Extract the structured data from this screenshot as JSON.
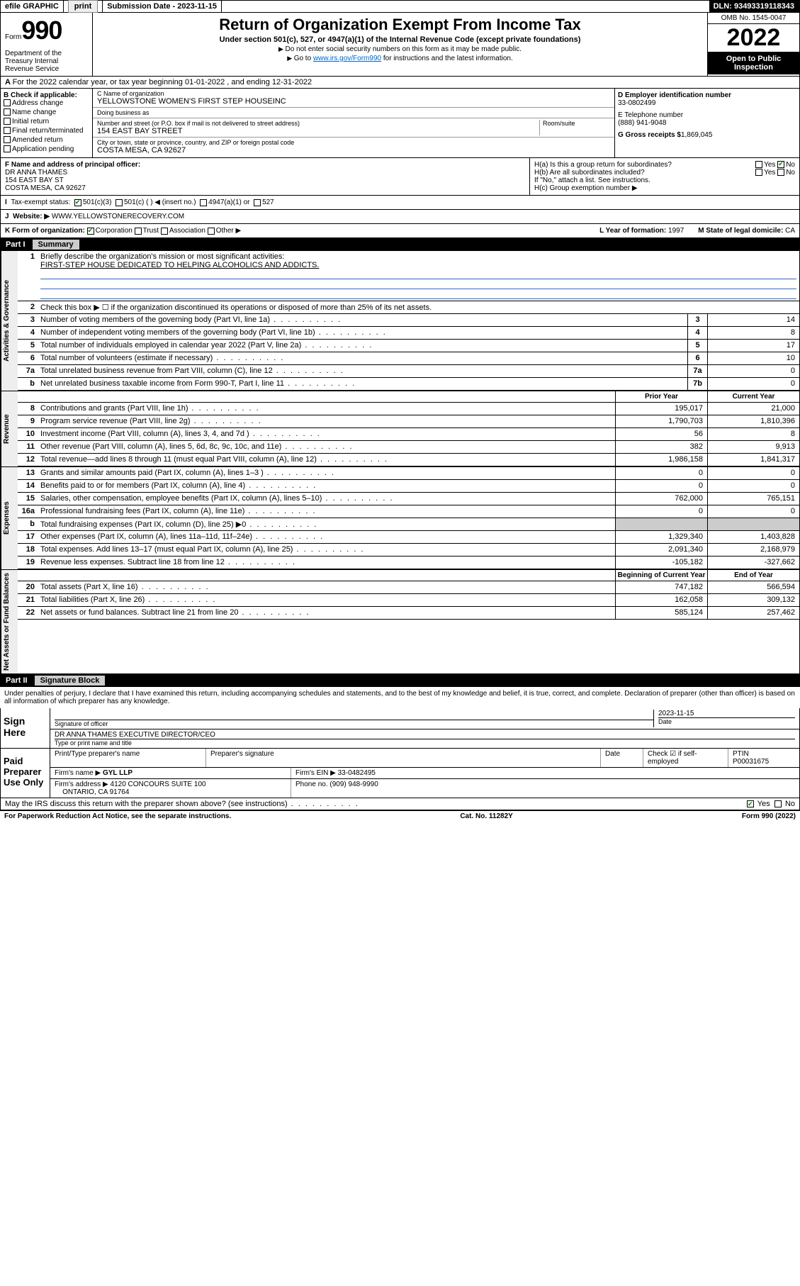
{
  "topbar": {
    "efile": "efile GRAPHIC",
    "print": "print",
    "submission_label": "Submission Date",
    "submission_date": "2023-11-15",
    "dln_label": "DLN:",
    "dln": "93493319118343"
  },
  "header": {
    "form_word": "Form",
    "form_no": "990",
    "title": "Return of Organization Exempt From Income Tax",
    "subtitle": "Under section 501(c), 527, or 4947(a)(1) of the Internal Revenue Code (except private foundations)",
    "note1": "Do not enter social security numbers on this form as it may be made public.",
    "note2_pre": "Go to ",
    "note2_link": "www.irs.gov/Form990",
    "note2_post": " for instructions and the latest information.",
    "omb": "OMB No. 1545-0047",
    "year": "2022",
    "inspection": "Open to Public Inspection",
    "dept": "Department of the Treasury Internal Revenue Service"
  },
  "rowA": "For the 2022 calendar year, or tax year beginning 01-01-2022   , and ending 12-31-2022",
  "B": {
    "hdr": "B Check if applicable:",
    "items": [
      "Address change",
      "Name change",
      "Initial return",
      "Final return/terminated",
      "Amended return",
      "Application pending"
    ]
  },
  "C": {
    "name_lbl": "C Name of organization",
    "name": "YELLOWSTONE WOMEN'S FIRST STEP HOUSEINC",
    "dba_lbl": "Doing business as",
    "dba": "",
    "street_lbl": "Number and street (or P.O. box if mail is not delivered to street address)",
    "room_lbl": "Room/suite",
    "street": "154 EAST BAY STREET",
    "city_lbl": "City or town, state or province, country, and ZIP or foreign postal code",
    "city": "COSTA MESA, CA  92627"
  },
  "D": {
    "ein_lbl": "D Employer identification number",
    "ein": "33-0802499",
    "phone_lbl": "E Telephone number",
    "phone": "(888) 941-9048",
    "gross_lbl": "G Gross receipts $",
    "gross": "1,869,045"
  },
  "F": {
    "lbl": "F Name and address of principal officer:",
    "name": "DR ANNA THAMES",
    "addr1": "154 EAST BAY ST",
    "addr2": "COSTA MESA, CA  92627"
  },
  "H": {
    "a": "H(a)  Is this a group return for subordinates?",
    "a_yes": "Yes",
    "a_no": "No",
    "b": "H(b)  Are all subordinates included?",
    "b_yes": "Yes",
    "b_no": "No",
    "b_note": "If \"No,\" attach a list. See instructions.",
    "c": "H(c)  Group exemption number ▶"
  },
  "I": {
    "lbl": "Tax-exempt status:",
    "o1": "501(c)(3)",
    "o2": "501(c) (  ) ◀ (insert no.)",
    "o3": "4947(a)(1) or",
    "o4": "527"
  },
  "J": {
    "lbl": "Website: ▶",
    "val": "WWW.YELLOWSTONERECOVERY.COM"
  },
  "K": {
    "lbl": "K Form of organization:",
    "o1": "Corporation",
    "o2": "Trust",
    "o3": "Association",
    "o4": "Other ▶",
    "L_lbl": "L Year of formation:",
    "L_val": "1997",
    "M_lbl": "M State of legal domicile:",
    "M_val": "CA"
  },
  "part1": {
    "num": "Part I",
    "title": "Summary"
  },
  "mission": {
    "q1": "Briefly describe the organization's mission or most significant activities:",
    "text": "FIRST-STEP HOUSE DEDICATED TO HELPING ALCOHOLICS AND ADDICTS."
  },
  "summary": {
    "sections": [
      {
        "label": "Activities & Governance",
        "rows": [
          {
            "n": "1",
            "t_key": "mission.q1",
            "type": "mission"
          },
          {
            "n": "2",
            "t": "Check this box ▶ ☐  if the organization discontinued its operations or disposed of more than 25% of its net assets.",
            "type": "plain"
          },
          {
            "n": "3",
            "t": "Number of voting members of the governing body (Part VI, line 1a)",
            "box": "3",
            "v2": "14"
          },
          {
            "n": "4",
            "t": "Number of independent voting members of the governing body (Part VI, line 1b)",
            "box": "4",
            "v2": "8"
          },
          {
            "n": "5",
            "t": "Total number of individuals employed in calendar year 2022 (Part V, line 2a)",
            "box": "5",
            "v2": "17"
          },
          {
            "n": "6",
            "t": "Total number of volunteers (estimate if necessary)",
            "box": "6",
            "v2": "10"
          },
          {
            "n": "7a",
            "t": "Total unrelated business revenue from Part VIII, column (C), line 12",
            "box": "7a",
            "v2": "0"
          },
          {
            "n": "b",
            "t": "Net unrelated business taxable income from Form 990-T, Part I, line 11",
            "box": "7b",
            "v2": "0"
          }
        ]
      },
      {
        "label": "Revenue",
        "header": true,
        "h1": "Prior Year",
        "h2": "Current Year",
        "rows": [
          {
            "n": "8",
            "t": "Contributions and grants (Part VIII, line 1h)",
            "v1": "195,017",
            "v2": "21,000"
          },
          {
            "n": "9",
            "t": "Program service revenue (Part VIII, line 2g)",
            "v1": "1,790,703",
            "v2": "1,810,396"
          },
          {
            "n": "10",
            "t": "Investment income (Part VIII, column (A), lines 3, 4, and 7d )",
            "v1": "56",
            "v2": "8"
          },
          {
            "n": "11",
            "t": "Other revenue (Part VIII, column (A), lines 5, 6d, 8c, 9c, 10c, and 11e)",
            "v1": "382",
            "v2": "9,913"
          },
          {
            "n": "12",
            "t": "Total revenue—add lines 8 through 11 (must equal Part VIII, column (A), line 12)",
            "v1": "1,986,158",
            "v2": "1,841,317"
          }
        ]
      },
      {
        "label": "Expenses",
        "rows": [
          {
            "n": "13",
            "t": "Grants and similar amounts paid (Part IX, column (A), lines 1–3 )",
            "v1": "0",
            "v2": "0"
          },
          {
            "n": "14",
            "t": "Benefits paid to or for members (Part IX, column (A), line 4)",
            "v1": "0",
            "v2": "0"
          },
          {
            "n": "15",
            "t": "Salaries, other compensation, employee benefits (Part IX, column (A), lines 5–10)",
            "v1": "762,000",
            "v2": "765,151"
          },
          {
            "n": "16a",
            "t": "Professional fundraising fees (Part IX, column (A), line 11e)",
            "v1": "0",
            "v2": "0"
          },
          {
            "n": "b",
            "t": "Total fundraising expenses (Part IX, column (D), line 25) ▶0",
            "v1": "",
            "v2": "",
            "shade": true
          },
          {
            "n": "17",
            "t": "Other expenses (Part IX, column (A), lines 11a–11d, 11f–24e)",
            "v1": "1,329,340",
            "v2": "1,403,828"
          },
          {
            "n": "18",
            "t": "Total expenses. Add lines 13–17 (must equal Part IX, column (A), line 25)",
            "v1": "2,091,340",
            "v2": "2,168,979"
          },
          {
            "n": "19",
            "t": "Revenue less expenses. Subtract line 18 from line 12",
            "v1": "-105,182",
            "v2": "-327,662"
          }
        ]
      },
      {
        "label": "Net Assets or Fund Balances",
        "header": true,
        "h1": "Beginning of Current Year",
        "h2": "End of Year",
        "rows": [
          {
            "n": "20",
            "t": "Total assets (Part X, line 16)",
            "v1": "747,182",
            "v2": "566,594"
          },
          {
            "n": "21",
            "t": "Total liabilities (Part X, line 26)",
            "v1": "162,058",
            "v2": "309,132"
          },
          {
            "n": "22",
            "t": "Net assets or fund balances. Subtract line 21 from line 20",
            "v1": "585,124",
            "v2": "257,462"
          }
        ]
      }
    ]
  },
  "part2": {
    "num": "Part II",
    "title": "Signature Block"
  },
  "penalties": "Under penalties of perjury, I declare that I have examined this return, including accompanying schedules and statements, and to the best of my knowledge and belief, it is true, correct, and complete. Declaration of preparer (other than officer) is based on all information of which preparer has any knowledge.",
  "sign": {
    "here": "Sign Here",
    "sig_lbl": "Signature of officer",
    "date_lbl": "Date",
    "date": "2023-11-15",
    "name": "DR ANNA THAMES EXECUTIVE DIRECTOR/CEO",
    "name_lbl": "Type or print name and title"
  },
  "paid": {
    "lbl": "Paid Preparer Use Only",
    "h1": "Print/Type preparer's name",
    "h2": "Preparer's signature",
    "h3": "Date",
    "h4": "Check ☑ if self-employed",
    "h5_lbl": "PTIN",
    "h5": "P00031675",
    "firm_lbl": "Firm's name  ▶",
    "firm": "GYL LLP",
    "ein_lbl": "Firm's EIN ▶",
    "ein": "33-0482495",
    "addr_lbl": "Firm's address ▶",
    "addr1": "4120 CONCOURS SUITE 100",
    "addr2": "ONTARIO, CA  91764",
    "phone_lbl": "Phone no.",
    "phone": "(909) 948-9990"
  },
  "discuss": {
    "q": "May the IRS discuss this return with the preparer shown above? (see instructions)",
    "yes": "Yes",
    "no": "No"
  },
  "foot": {
    "left": "For Paperwork Reduction Act Notice, see the separate instructions.",
    "mid": "Cat. No. 11282Y",
    "right": "Form 990 (2022)"
  }
}
